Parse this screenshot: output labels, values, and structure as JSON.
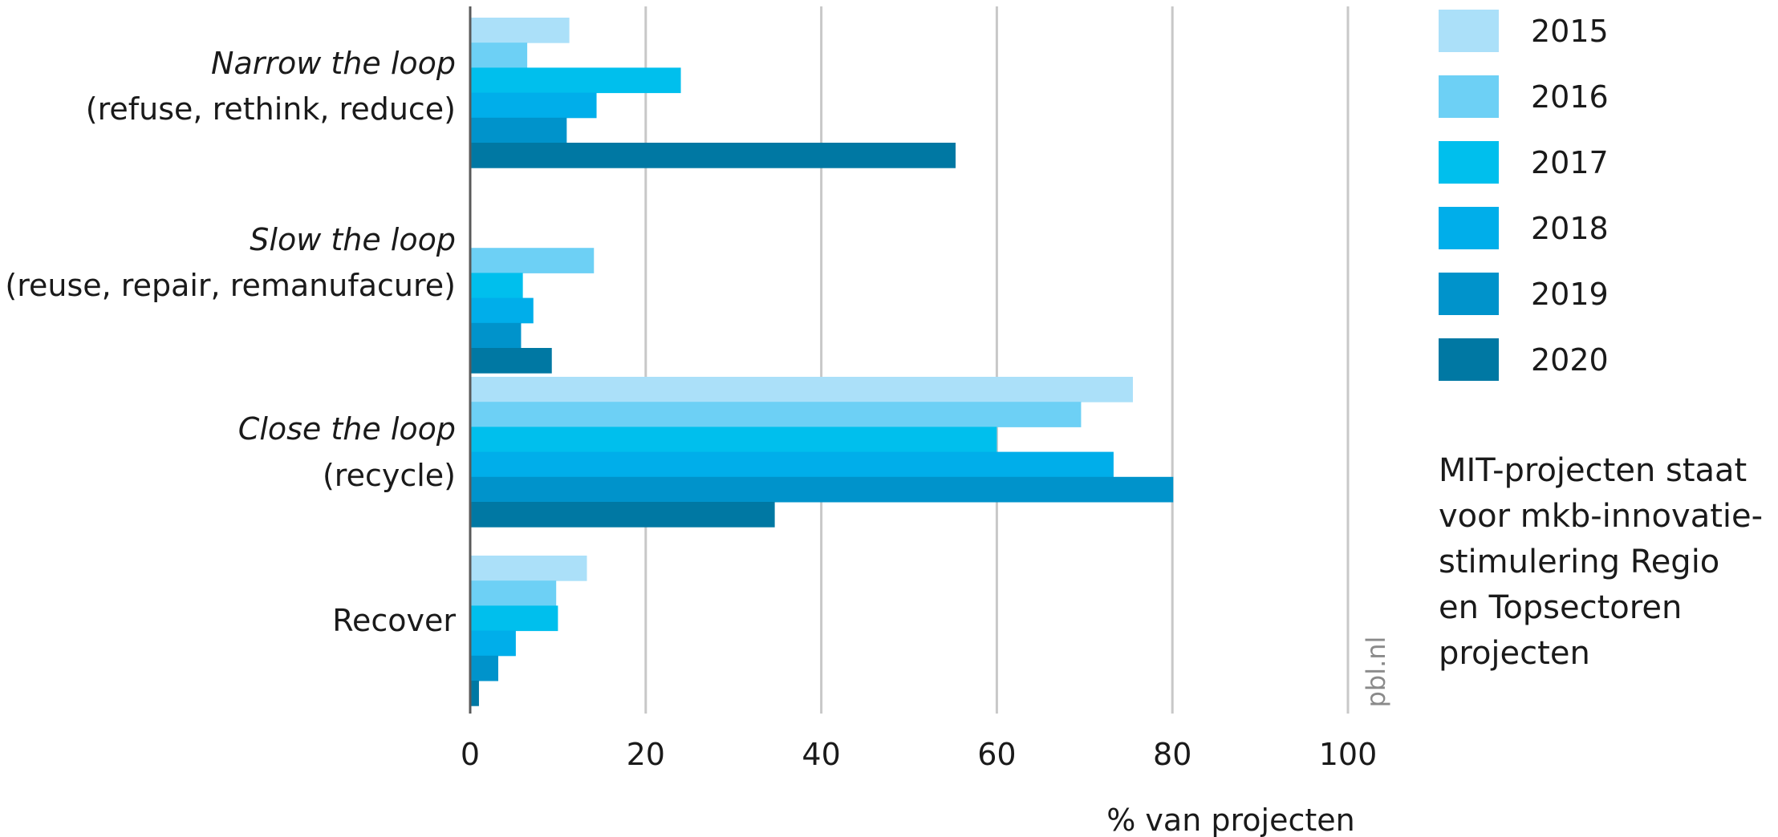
{
  "chart_data": {
    "type": "bar",
    "orientation": "horizontal",
    "categories": [
      {
        "name": "Narrow the loop",
        "detail": "(refuse, rethink, reduce)"
      },
      {
        "name": "Slow the loop",
        "detail": "(reuse, repair, remanufacure)"
      },
      {
        "name": "",
        "detail": ""
      },
      {
        "name": "",
        "detail": "Recover"
      }
    ],
    "series": [
      {
        "name": "2015",
        "color": "#abe0f9",
        "values": [
          11.3,
          0,
          75.5,
          13.3
        ]
      },
      {
        "name": "2016",
        "color": "#6dd0f5",
        "values": [
          6.5,
          14.1,
          69.6,
          9.8
        ]
      },
      {
        "name": "2017",
        "color": "#00bfed",
        "values": [
          24.0,
          6.0,
          60.0,
          10.0
        ]
      },
      {
        "name": "2018",
        "color": "#00aeea",
        "values": [
          14.4,
          7.2,
          73.3,
          5.2
        ]
      },
      {
        "name": "2019",
        "color": "#0093cb",
        "values": [
          11.0,
          5.8,
          80.1,
          3.2
        ]
      },
      {
        "name": "2020",
        "color": "#0078a3",
        "values": [
          55.3,
          9.3,
          34.7,
          1.0
        ]
      }
    ],
    "xlabel": "% van projecten",
    "xlim": [
      0,
      100
    ],
    "xticks": [
      "0",
      "20",
      "40",
      "60",
      "80",
      "100"
    ],
    "grid": "vertical",
    "legend": "right",
    "note": [
      "MIT-projecten staat",
      "voor mkb-innovatie-",
      "stimulering Regio",
      "en Topsectoren",
      "projecten"
    ],
    "credit": "pbl.nl"
  },
  "category_labels": {
    "close_name": "Close the loop",
    "close_detail": "(recycle)"
  }
}
